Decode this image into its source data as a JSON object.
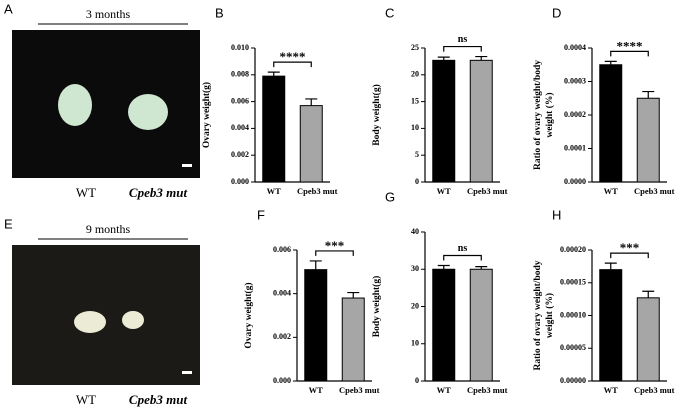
{
  "photos": [
    {
      "letter": "A",
      "title": "3 months",
      "labels": [
        "WT",
        "Cpeb3 mut"
      ]
    },
    {
      "letter": "E",
      "title": "9 months",
      "labels": [
        "WT",
        "Cpeb3 mut"
      ]
    }
  ],
  "chart_data": [
    {
      "type": "bar",
      "letter": "B",
      "ylabel": [
        "Ovary weight(g)"
      ],
      "categories": [
        "WT",
        "Cpeb3 mut"
      ],
      "values": [
        0.0079,
        0.0057
      ],
      "errors": [
        0.0003,
        0.0005
      ],
      "colors": [
        "#000000",
        "#a6a6a6"
      ],
      "significance": "****",
      "ylim": [
        0,
        0.01
      ],
      "yticks": [
        {
          "value": 0,
          "label": "0.000"
        },
        {
          "value": 0.002,
          "label": "0.002"
        },
        {
          "value": 0.004,
          "label": "0.004"
        },
        {
          "value": 0.006,
          "label": "0.006"
        },
        {
          "value": 0.008,
          "label": "0.008"
        },
        {
          "value": 0.01,
          "label": "0.010"
        }
      ]
    },
    {
      "type": "bar",
      "letter": "C",
      "ylabel": [
        "Body weight(g)"
      ],
      "categories": [
        "WT",
        "Cpeb3 mut"
      ],
      "values": [
        22.7,
        22.7
      ],
      "errors": [
        0.6,
        0.7
      ],
      "colors": [
        "#000000",
        "#a6a6a6"
      ],
      "significance": "ns",
      "ylim": [
        0,
        25
      ],
      "yticks": [
        0,
        5,
        10,
        15,
        20,
        25
      ]
    },
    {
      "type": "bar",
      "letter": "D",
      "ylabel": [
        "Ratio of ovary weight/body",
        "weight (%)"
      ],
      "categories": [
        "WT",
        "Cpeb3 mut"
      ],
      "values": [
        0.00035,
        0.00025
      ],
      "errors": [
        1e-05,
        2e-05
      ],
      "colors": [
        "#000000",
        "#a6a6a6"
      ],
      "significance": "****",
      "ylim": [
        0,
        0.0004
      ],
      "yticks": [
        {
          "value": 0,
          "label": "0.0000"
        },
        {
          "value": 0.0001,
          "label": "0.0001"
        },
        {
          "value": 0.0002,
          "label": "0.0002"
        },
        {
          "value": 0.0003,
          "label": "0.0003"
        },
        {
          "value": 0.0004,
          "label": "0.0004"
        }
      ]
    },
    {
      "type": "bar",
      "letter": "F",
      "ylabel": [
        "Ovary weight(g)"
      ],
      "categories": [
        "WT",
        "Cpeb3 mut"
      ],
      "values": [
        0.0051,
        0.0038
      ],
      "errors": [
        0.0004,
        0.00025
      ],
      "colors": [
        "#000000",
        "#a6a6a6"
      ],
      "significance": "***",
      "ylim": [
        0,
        0.006
      ],
      "yticks": [
        {
          "value": 0,
          "label": "0.000"
        },
        {
          "value": 0.002,
          "label": "0.002"
        },
        {
          "value": 0.004,
          "label": "0.004"
        },
        {
          "value": 0.006,
          "label": "0.006"
        }
      ]
    },
    {
      "type": "bar",
      "letter": "G",
      "ylabel": [
        "Body weight(g)"
      ],
      "categories": [
        "WT",
        "Cpeb3 mut"
      ],
      "values": [
        30,
        30
      ],
      "errors": [
        1,
        0.7
      ],
      "colors": [
        "#000000",
        "#a6a6a6"
      ],
      "significance": "ns",
      "ylim": [
        0,
        40
      ],
      "yticks": [
        0,
        10,
        20,
        30,
        40
      ]
    },
    {
      "type": "bar",
      "letter": "H",
      "ylabel": [
        "Ratio of ovary weight/body",
        "weight (%)"
      ],
      "categories": [
        "WT",
        "Cpeb3 mut"
      ],
      "values": [
        0.00017,
        0.000127
      ],
      "errors": [
        1e-05,
        1e-05
      ],
      "colors": [
        "#000000",
        "#a6a6a6"
      ],
      "significance": "***",
      "ylim": [
        0,
        0.0002
      ],
      "yticks": [
        {
          "value": 0,
          "label": "0.00000"
        },
        {
          "value": 5e-05,
          "label": "0.00005"
        },
        {
          "value": 0.0001,
          "label": "0.00010"
        },
        {
          "value": 0.00015,
          "label": "0.00015"
        },
        {
          "value": 0.0002,
          "label": "0.00020"
        }
      ]
    }
  ]
}
